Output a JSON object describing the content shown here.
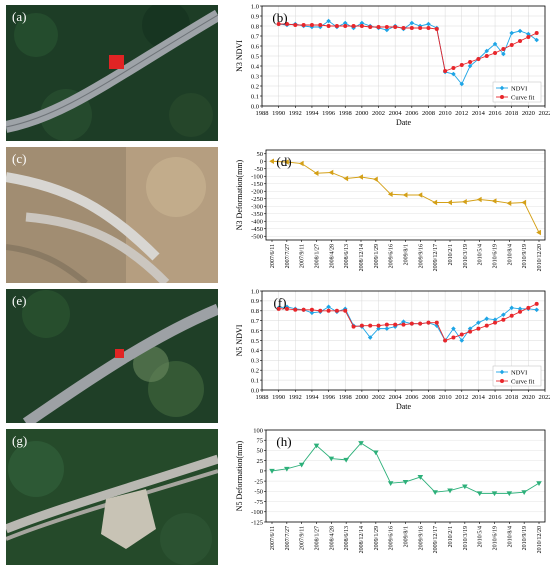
{
  "photos": [
    {
      "label": "(a)"
    },
    {
      "label": "(c)"
    },
    {
      "label": "(e)"
    },
    {
      "label": "(g)"
    }
  ],
  "chart_data": [
    {
      "panel": "(b)",
      "type": "line",
      "ylabel": "N3 NDVI",
      "xlabel": "Date",
      "xlim": [
        1988,
        2022
      ],
      "ylim": [
        0.0,
        1.0
      ],
      "xticks": [
        1988,
        1990,
        1992,
        1994,
        1996,
        1998,
        2000,
        2002,
        2004,
        2006,
        2008,
        2010,
        2012,
        2014,
        2016,
        2018,
        2020,
        2022
      ],
      "yticks": [
        0.0,
        0.1,
        0.2,
        0.3,
        0.4,
        0.5,
        0.6,
        0.7,
        0.8,
        0.9,
        1.0
      ],
      "legend_position": "bottom-right",
      "series": [
        {
          "name": "NDVI",
          "color": "#1ea5e6",
          "x": [
            1990,
            1991,
            1992,
            1993,
            1994,
            1995,
            1996,
            1997,
            1998,
            1999,
            2000,
            2001,
            2002,
            2003,
            2004,
            2005,
            2006,
            2007,
            2008,
            2009,
            2010,
            2011,
            2012,
            2013,
            2014,
            2015,
            2016,
            2017,
            2018,
            2019,
            2020,
            2021
          ],
          "y": [
            0.82,
            0.81,
            0.82,
            0.8,
            0.79,
            0.79,
            0.85,
            0.79,
            0.83,
            0.78,
            0.83,
            0.8,
            0.78,
            0.76,
            0.8,
            0.77,
            0.83,
            0.8,
            0.82,
            0.78,
            0.34,
            0.32,
            0.22,
            0.4,
            0.47,
            0.55,
            0.62,
            0.52,
            0.73,
            0.75,
            0.72,
            0.66
          ]
        },
        {
          "name": "Curve fit",
          "color": "#e8262b",
          "x": [
            1990,
            1991,
            1992,
            1993,
            1994,
            1995,
            1996,
            1997,
            1998,
            1999,
            2000,
            2001,
            2002,
            2003,
            2004,
            2005,
            2006,
            2007,
            2008,
            2009,
            2010,
            2011,
            2012,
            2013,
            2014,
            2015,
            2016,
            2017,
            2018,
            2019,
            2020,
            2021
          ],
          "y": [
            0.82,
            0.82,
            0.81,
            0.81,
            0.81,
            0.81,
            0.8,
            0.8,
            0.8,
            0.8,
            0.8,
            0.79,
            0.79,
            0.79,
            0.79,
            0.78,
            0.78,
            0.78,
            0.78,
            0.77,
            0.35,
            0.38,
            0.41,
            0.44,
            0.47,
            0.5,
            0.53,
            0.57,
            0.61,
            0.65,
            0.69,
            0.73
          ]
        }
      ]
    },
    {
      "panel": "(d)",
      "type": "line",
      "ylabel": "N3 Deformation(mm)",
      "ylim": [
        -525,
        75
      ],
      "yticks": [
        50,
        0,
        -50,
        -100,
        -150,
        -200,
        -250,
        -300,
        -350,
        -400,
        -450,
        -500
      ],
      "color": "#d4a017",
      "categories": [
        "2007/6/11",
        "2007/7/27",
        "2007/9/11",
        "2008/1/27",
        "2008/4/28",
        "2008/6/13",
        "2008/12/14",
        "2009/1/29",
        "2009/6/16",
        "2009/8/1",
        "2009/9/16",
        "2009/12/17",
        "2010/2/1",
        "2010/3/19",
        "2010/5/4",
        "2010/6/19",
        "2010/8/4",
        "2010/9/19",
        "2010/12/20"
      ],
      "values": [
        0,
        -5,
        -15,
        -80,
        -75,
        -115,
        -105,
        -120,
        -220,
        -225,
        -225,
        -275,
        -275,
        -270,
        -255,
        -265,
        -280,
        -275,
        -475
      ]
    },
    {
      "panel": "(f)",
      "type": "line",
      "ylabel": "N5 NDVI",
      "xlabel": "Date",
      "xlim": [
        1988,
        2022
      ],
      "ylim": [
        0.0,
        1.0
      ],
      "xticks": [
        1988,
        1990,
        1992,
        1994,
        1996,
        1998,
        2000,
        2002,
        2004,
        2006,
        2008,
        2010,
        2012,
        2014,
        2016,
        2018,
        2020,
        2022
      ],
      "yticks": [
        0.0,
        0.1,
        0.2,
        0.3,
        0.4,
        0.5,
        0.6,
        0.7,
        0.8,
        0.9,
        1.0
      ],
      "legend_position": "bottom-right",
      "series": [
        {
          "name": "NDVI",
          "color": "#1ea5e6",
          "x": [
            1990,
            1991,
            1992,
            1993,
            1994,
            1995,
            1996,
            1997,
            1998,
            1999,
            2000,
            2001,
            2002,
            2003,
            2004,
            2005,
            2006,
            2007,
            2008,
            2009,
            2010,
            2011,
            2012,
            2013,
            2014,
            2015,
            2016,
            2017,
            2018,
            2019,
            2020,
            2021
          ],
          "y": [
            0.83,
            0.84,
            0.82,
            0.81,
            0.78,
            0.79,
            0.84,
            0.79,
            0.82,
            0.65,
            0.64,
            0.53,
            0.62,
            0.62,
            0.64,
            0.69,
            0.67,
            0.67,
            0.68,
            0.65,
            0.5,
            0.62,
            0.5,
            0.62,
            0.68,
            0.72,
            0.71,
            0.76,
            0.83,
            0.82,
            0.82,
            0.81
          ]
        },
        {
          "name": "Curve fit",
          "color": "#e8262b",
          "x": [
            1990,
            1991,
            1992,
            1993,
            1994,
            1995,
            1996,
            1997,
            1998,
            1999,
            2000,
            2001,
            2002,
            2003,
            2004,
            2005,
            2006,
            2007,
            2008,
            2009,
            2010,
            2011,
            2012,
            2013,
            2014,
            2015,
            2016,
            2017,
            2018,
            2019,
            2020,
            2021
          ],
          "y": [
            0.82,
            0.82,
            0.81,
            0.81,
            0.81,
            0.8,
            0.8,
            0.8,
            0.8,
            0.64,
            0.65,
            0.65,
            0.65,
            0.66,
            0.66,
            0.66,
            0.67,
            0.67,
            0.68,
            0.68,
            0.5,
            0.53,
            0.56,
            0.59,
            0.62,
            0.65,
            0.68,
            0.71,
            0.75,
            0.79,
            0.83,
            0.87
          ]
        }
      ]
    },
    {
      "panel": "(h)",
      "type": "line",
      "ylabel": "N5 Deformation(mm)",
      "ylim": [
        -125,
        100
      ],
      "yticks": [
        100,
        75,
        50,
        25,
        0,
        -25,
        -50,
        -75,
        -100,
        -125
      ],
      "color": "#2db07a",
      "categories": [
        "2007/6/11",
        "2007/7/27",
        "2007/9/11",
        "2008/1/27",
        "2008/4/28",
        "2008/6/13",
        "2008/12/14",
        "2009/1/29",
        "2009/6/16",
        "2009/8/1",
        "2009/9/16",
        "2009/12/17",
        "2010/2/1",
        "2010/3/19",
        "2010/5/4",
        "2010/6/19",
        "2010/8/4",
        "2010/9/19",
        "2010/12/20"
      ],
      "values": [
        0,
        5,
        15,
        62,
        30,
        27,
        68,
        45,
        -30,
        -27,
        -15,
        -52,
        -48,
        -38,
        -55,
        -55,
        -55,
        -52,
        -30
      ]
    }
  ]
}
